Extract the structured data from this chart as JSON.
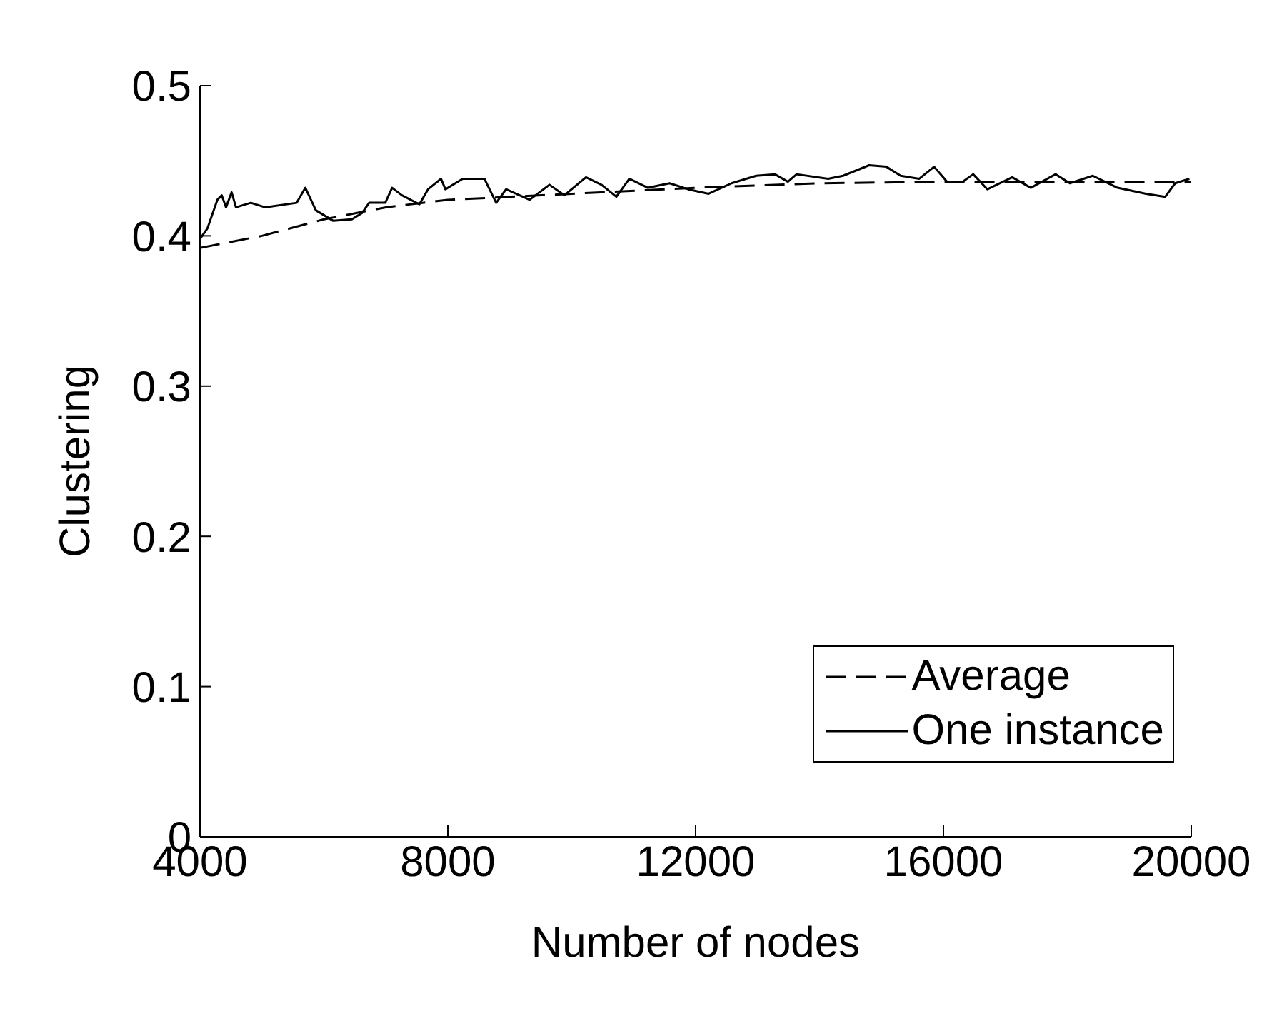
{
  "chart_data": {
    "type": "line",
    "xlabel": "Number of nodes",
    "ylabel": "Clustering",
    "xlim": [
      4000,
      20000
    ],
    "xticks": [
      4000,
      8000,
      12000,
      16000,
      20000
    ],
    "ylim": [
      0,
      0.5
    ],
    "yticks": [
      0,
      0.1,
      0.2,
      0.3,
      0.4,
      0.5
    ],
    "grid": false,
    "legend": "bottom right",
    "marker": "none",
    "series": [
      {
        "name": "Average",
        "color": "#000000",
        "line_style": "dashed",
        "x": [
          4000,
          5000,
          6000,
          7000,
          8000,
          10000,
          12000,
          14000,
          16000,
          18000,
          20000
        ],
        "values": [
          0.392,
          0.4,
          0.411,
          0.419,
          0.424,
          0.428,
          0.432,
          0.435,
          0.436,
          0.436,
          0.436
        ]
      },
      {
        "name": "One instance",
        "color": "#000000",
        "line_style": "solid",
        "x": [
          4000,
          4120,
          4280,
          4350,
          4420,
          4510,
          4580,
          4820,
          5050,
          5560,
          5700,
          5870,
          6150,
          6450,
          6610,
          6730,
          6990,
          7100,
          7260,
          7540,
          7680,
          7890,
          7960,
          8240,
          8590,
          8780,
          8940,
          9320,
          9640,
          9880,
          10230,
          10480,
          10720,
          10930,
          11230,
          11580,
          11880,
          12210,
          12580,
          12980,
          13280,
          13490,
          13630,
          14140,
          14380,
          14800,
          15080,
          15310,
          15610,
          15850,
          16060,
          16310,
          16480,
          16710,
          17110,
          17410,
          17810,
          18040,
          18410,
          18810,
          19270,
          19580,
          19740,
          19970
        ],
        "values": [
          0.398,
          0.405,
          0.424,
          0.427,
          0.419,
          0.429,
          0.419,
          0.422,
          0.419,
          0.422,
          0.432,
          0.417,
          0.41,
          0.411,
          0.415,
          0.422,
          0.422,
          0.432,
          0.427,
          0.421,
          0.431,
          0.438,
          0.431,
          0.438,
          0.438,
          0.422,
          0.431,
          0.424,
          0.434,
          0.427,
          0.439,
          0.434,
          0.426,
          0.438,
          0.432,
          0.435,
          0.431,
          0.428,
          0.435,
          0.44,
          0.441,
          0.436,
          0.441,
          0.438,
          0.44,
          0.447,
          0.446,
          0.44,
          0.438,
          0.446,
          0.436,
          0.436,
          0.441,
          0.431,
          0.439,
          0.432,
          0.441,
          0.435,
          0.44,
          0.432,
          0.428,
          0.426,
          0.435,
          0.438
        ]
      }
    ]
  }
}
